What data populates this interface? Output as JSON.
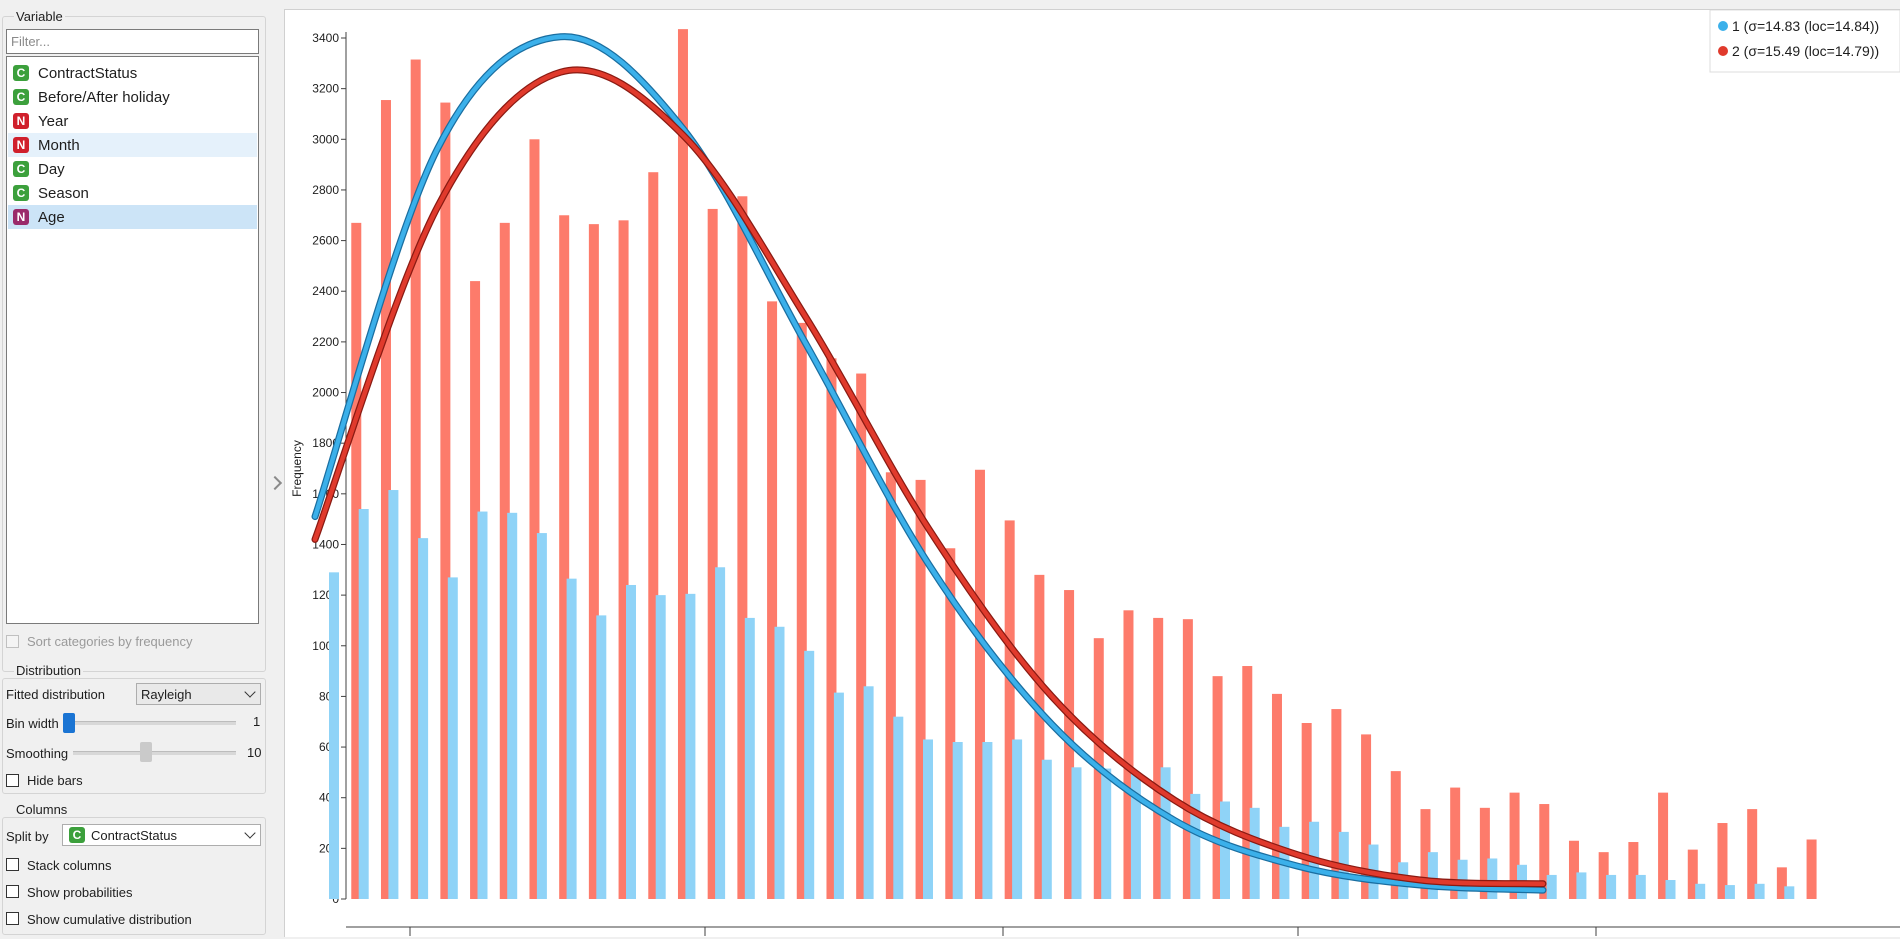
{
  "variable_panel": {
    "title": "Variable",
    "filter_placeholder": "Filter...",
    "items": [
      {
        "badge": "C",
        "label": "ContractStatus"
      },
      {
        "badge": "C",
        "label": "Before/After holiday"
      },
      {
        "badge": "N",
        "label": "Year"
      },
      {
        "badge": "N",
        "label": "Month"
      },
      {
        "badge": "C",
        "label": "Day"
      },
      {
        "badge": "C",
        "label": "Season"
      },
      {
        "badge": "N",
        "label": "Age"
      }
    ],
    "hovered_item": "Month",
    "selected_item": "Age",
    "sort_by_frequency_label": "Sort categories by frequency"
  },
  "distribution_panel": {
    "title": "Distribution",
    "fitted_label": "Fitted distribution",
    "fitted_value": "Rayleigh",
    "bin_width_label": "Bin width",
    "bin_width_value": "1",
    "smoothing_label": "Smoothing",
    "smoothing_value": "10",
    "hide_bars_label": "Hide bars"
  },
  "columns_panel": {
    "title": "Columns",
    "split_by_label": "Split by",
    "split_by_badge": "C",
    "split_by_value": "ContractStatus",
    "stack_label": "Stack columns",
    "prob_label": "Show probabilities",
    "cumulative_label": "Show cumulative distribution"
  },
  "colors": {
    "series1": "#8fd3f7",
    "series2": "#fd7b6b",
    "curve1": "#3bb0ea",
    "curve2": "#e03a2c",
    "accent": "#1a74d3"
  },
  "chart_data": {
    "type": "bar",
    "ylabel": "Frequency",
    "ylim": [
      0,
      3400
    ],
    "yticks": [
      "0",
      "200",
      "400",
      "600",
      "800",
      "1000",
      "1200",
      "1400",
      "1600",
      "1800",
      "2000",
      "2200",
      "2400",
      "2600",
      "2800",
      "3000",
      "3200",
      "3400"
    ],
    "series": [
      {
        "name": "1 (σ=14.83 (loc=14.84))",
        "values": [
          1290,
          1540,
          1615,
          1425,
          1270,
          1530,
          1525,
          1445,
          1265,
          1120,
          1240,
          1200,
          1205,
          1310,
          1110,
          1075,
          980,
          815,
          840,
          720,
          630,
          620,
          620,
          630,
          550,
          520,
          515,
          495,
          520,
          415,
          385,
          360,
          285,
          305,
          265,
          215,
          145,
          185,
          155,
          160,
          135,
          95,
          105,
          95,
          95,
          75,
          60,
          55,
          60,
          50
        ]
      },
      {
        "name": "2 (σ=15.49 (loc=14.79))",
        "values": [
          2670,
          3155,
          3315,
          3145,
          2440,
          2670,
          3000,
          2700,
          2665,
          2680,
          2870,
          3435,
          2725,
          2775,
          2360,
          2275,
          2135,
          2075,
          1685,
          1655,
          1385,
          1695,
          1495,
          1280,
          1220,
          1030,
          1140,
          1110,
          1105,
          880,
          920,
          810,
          695,
          750,
          650,
          505,
          355,
          440,
          360,
          420,
          375,
          230,
          185,
          225,
          420,
          195,
          300,
          355,
          125,
          235
        ]
      }
    ],
    "legend": [
      {
        "label": "1 (σ=14.83 (loc=14.84))"
      },
      {
        "label": "2 (σ=15.49 (loc=14.79))"
      }
    ],
    "legend_placement": "top-right",
    "fit": {
      "distribution": "Rayleigh",
      "curve1": {
        "x": [
          0,
          5,
          10,
          15,
          20,
          25,
          30,
          35,
          40,
          45,
          50
        ],
        "y": [
          1510,
          2965,
          3405,
          3040,
          2190,
          1320,
          690,
          310,
          130,
          55,
          35
        ]
      },
      "curve2": {
        "x": [
          0,
          5,
          10,
          15,
          20,
          25,
          30,
          35,
          40,
          45,
          50
        ],
        "y": [
          1420,
          2735,
          3265,
          3015,
          2295,
          1460,
          800,
          390,
          175,
          75,
          60
        ]
      }
    }
  }
}
